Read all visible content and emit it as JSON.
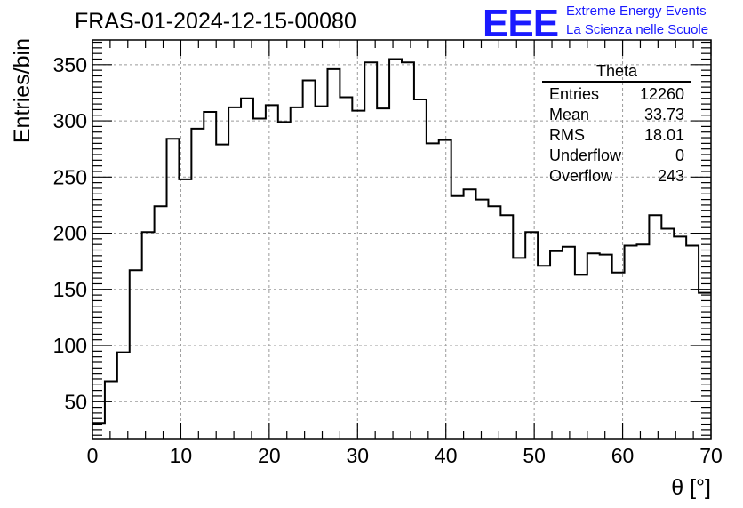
{
  "header": {
    "title": "FRAS-01-2024-12-15-00080",
    "logo_text": "EEE",
    "brand_line1": "Extreme Energy Events",
    "brand_line2": "La Scienza nelle Scuole"
  },
  "stats_box": {
    "title": "Theta",
    "rows": [
      {
        "label": "Entries",
        "value": "12260"
      },
      {
        "label": "Mean",
        "value": "33.73"
      },
      {
        "label": "RMS",
        "value": "18.01"
      },
      {
        "label": "Underflow",
        "value": "0"
      },
      {
        "label": "Overflow",
        "value": "243"
      }
    ]
  },
  "colors": {
    "histogram_line": "#000000",
    "grid": "#9a9a9a",
    "brand": "#1a1aff"
  },
  "chart_data": {
    "type": "histogram",
    "xlabel": "θ [°]",
    "ylabel": "Entries/bin",
    "xlim": [
      0,
      70
    ],
    "ylim": [
      17,
      372
    ],
    "bin_width": 1.4,
    "x_ticks": [
      0,
      10,
      20,
      30,
      40,
      50,
      60,
      70
    ],
    "y_ticks": [
      50,
      100,
      150,
      200,
      250,
      300,
      350
    ],
    "grid": true,
    "bin_edges_start": 0,
    "values": [
      31,
      68,
      94,
      167,
      201,
      224,
      284,
      248,
      293,
      308,
      279,
      312,
      320,
      302,
      314,
      299,
      312,
      336,
      313,
      346,
      321,
      309,
      352,
      311,
      355,
      352,
      319,
      280,
      283,
      233,
      239,
      230,
      224,
      216,
      178,
      201,
      171,
      184,
      188,
      163,
      182,
      181,
      165,
      189,
      190,
      216,
      204,
      197,
      189,
      147
    ]
  }
}
